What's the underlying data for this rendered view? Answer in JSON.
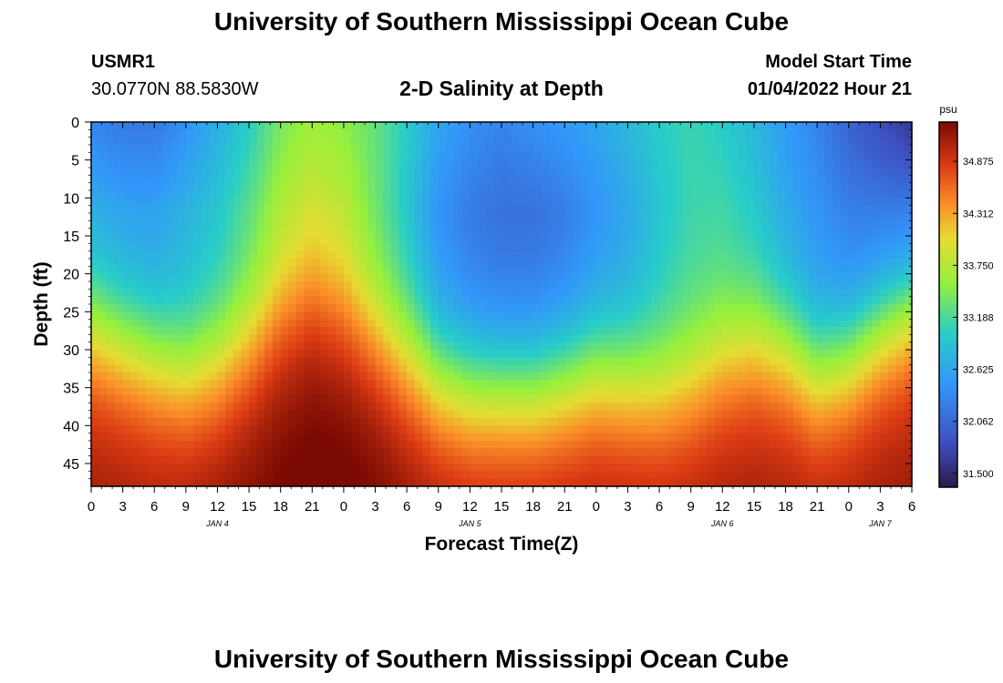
{
  "header": {
    "title": "University of Southern Mississippi Ocean Cube",
    "station_id": "USMR1",
    "coordinates": "30.0770N  88.5830W",
    "plot_title": "2-D Salinity at Depth",
    "model_start_label": "Model Start Time",
    "model_start_value": "01/04/2022 Hour 21"
  },
  "footer": {
    "title": "University of Southern Mississippi Ocean Cube"
  },
  "colors": {
    "low": "#2a1b4a",
    "mid_blue": "#3f5fd6",
    "cyan": "#2fc8c8",
    "green": "#8ef03a",
    "orange": "#f8912a",
    "high": "#7b0a02"
  },
  "chart_data": {
    "type": "heatmap",
    "title": "2-D Salinity at Depth",
    "xlabel": "Forecast Time(Z)",
    "ylabel": "Depth (ft)",
    "x_tick_labels": [
      "0",
      "3",
      "6",
      "9",
      "12",
      "15",
      "18",
      "21",
      "0",
      "3",
      "6",
      "9",
      "12",
      "15",
      "18",
      "21",
      "0",
      "3",
      "6",
      "9",
      "12",
      "15",
      "18",
      "21",
      "0",
      "3",
      "6"
    ],
    "x_hours": [
      0,
      3,
      6,
      9,
      12,
      15,
      18,
      21,
      24,
      27,
      30,
      33,
      36,
      39,
      42,
      45,
      48,
      51,
      54,
      57,
      60,
      63,
      66,
      69,
      72,
      75,
      78
    ],
    "day_labels": [
      {
        "label": "JAN 4",
        "hour": 12
      },
      {
        "label": "JAN 5",
        "hour": 36
      },
      {
        "label": "JAN 6",
        "hour": 60
      },
      {
        "label": "JAN 7",
        "hour": 75
      }
    ],
    "ylim": [
      0,
      48
    ],
    "y_ticks": [
      0,
      5,
      10,
      15,
      20,
      25,
      30,
      35,
      40,
      45
    ],
    "colorbar": {
      "unit": "psu",
      "range": [
        31.35,
        35.3
      ],
      "ticks": [
        "34.875",
        "34.312",
        "33.750",
        "33.188",
        "32.625",
        "32.062",
        "31.500"
      ]
    },
    "grid": false,
    "profiles": {
      "hours": [
        0,
        3,
        6,
        9,
        12,
        15,
        18,
        21,
        24,
        27,
        30,
        33,
        36,
        39,
        42,
        45,
        48,
        51,
        54,
        57,
        60,
        63,
        66,
        69,
        72,
        75,
        78
      ],
      "surface_psu": [
        32.3,
        32.2,
        32.2,
        32.4,
        32.7,
        33.0,
        33.4,
        33.6,
        33.5,
        33.3,
        33.0,
        32.6,
        32.4,
        32.3,
        32.4,
        32.5,
        32.6,
        32.8,
        33.0,
        33.1,
        33.0,
        32.8,
        32.5,
        32.3,
        32.0,
        31.8,
        31.6
      ],
      "midlayer_psu": [
        32.6,
        32.5,
        32.5,
        32.7,
        32.9,
        33.2,
        33.6,
        33.8,
        33.7,
        33.3,
        32.9,
        32.4,
        32.2,
        32.1,
        32.1,
        32.2,
        32.4,
        32.6,
        32.9,
        33.1,
        33.1,
        32.9,
        32.6,
        32.4,
        32.2,
        32.1,
        32.0
      ],
      "thermocline_ft": [
        27,
        29,
        31,
        33,
        32,
        29,
        25,
        23,
        25,
        28,
        31,
        34,
        35,
        35,
        35,
        34,
        33,
        34,
        35,
        34,
        31,
        29,
        30,
        33,
        31,
        27,
        24
      ],
      "bottom_psu": [
        35.0,
        35.0,
        35.0,
        35.05,
        35.1,
        35.15,
        35.2,
        35.25,
        35.25,
        35.2,
        35.1,
        35.05,
        35.0,
        35.0,
        35.0,
        35.0,
        35.0,
        35.0,
        35.0,
        35.0,
        35.0,
        35.0,
        35.0,
        35.0,
        35.0,
        35.0,
        35.0
      ]
    }
  }
}
